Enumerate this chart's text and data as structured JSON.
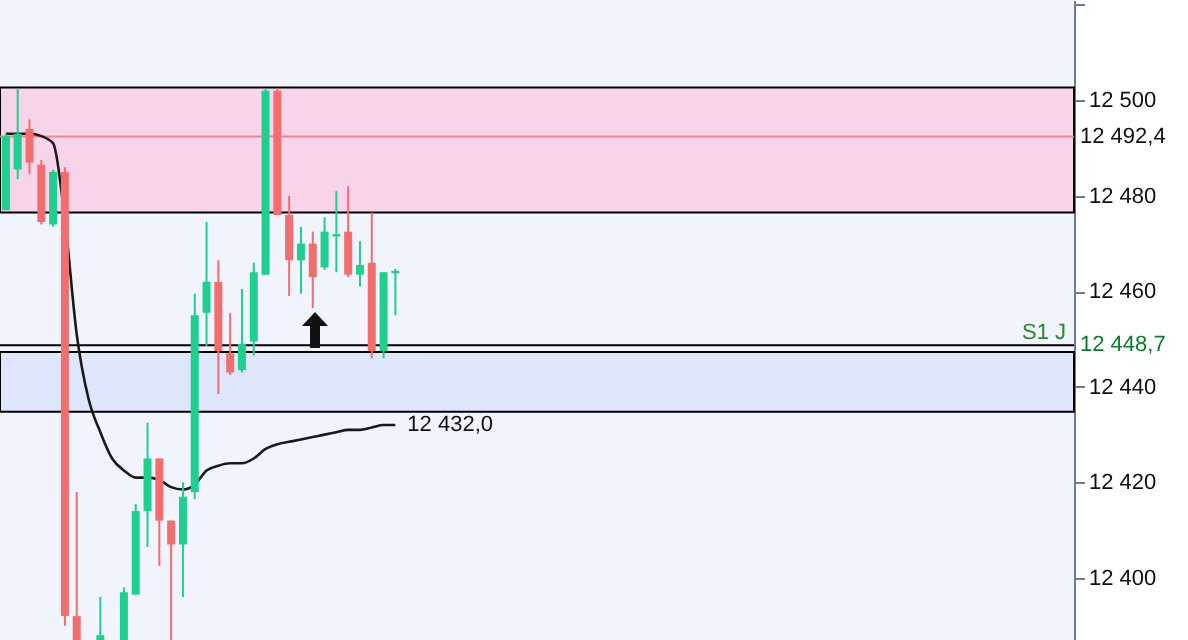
{
  "chart_data": {
    "type": "candlestick",
    "categories": [
      null,
      null,
      null,
      null,
      null,
      null,
      null,
      null,
      null,
      null,
      null,
      null,
      null,
      null,
      null,
      null,
      null,
      null,
      null,
      null,
      null,
      null,
      null,
      null,
      null,
      null,
      null,
      null,
      null,
      null,
      null,
      null,
      null,
      null,
      null,
      null,
      null,
      null,
      null,
      null,
      null,
      null,
      null,
      null,
      null,
      null,
      null,
      null,
      null,
      null,
      null,
      null,
      null,
      null,
      null,
      null,
      null,
      null,
      null,
      null,
      null,
      null,
      null,
      null,
      null,
      null,
      null,
      null,
      null,
      null,
      null,
      null,
      null,
      null,
      null,
      null,
      null,
      null,
      null,
      null,
      null,
      null,
      null,
      null,
      null,
      null,
      null,
      null,
      null,
      null,
      null
    ],
    "ohlc": [
      [
        12477,
        12493,
        12477,
        12492.5
      ],
      [
        12485.5,
        12502.5,
        12483.5,
        12493
      ],
      [
        12494,
        12496,
        12484.5,
        12487
      ],
      [
        12486.5,
        12487.5,
        12474,
        12474.5
      ],
      [
        12474,
        12485.5,
        12473.5,
        12485
      ],
      [
        12485,
        12486,
        12390,
        12392
      ],
      [
        12392,
        12418,
        12387,
        12387
      ],
      null,
      [
        12387,
        12396,
        12387,
        12388
      ],
      null,
      [
        12387,
        12398,
        12387,
        12397
      ],
      [
        12396.5,
        12415.5,
        12396.5,
        12414
      ],
      [
        12414,
        12432.5,
        12406.5,
        12425
      ],
      [
        12425,
        12425,
        12402.5,
        12412
      ],
      [
        12412,
        12412,
        12387,
        12407
      ],
      [
        12407,
        12420,
        12396,
        12417
      ],
      [
        12418,
        12459.5,
        12416.5,
        12455
      ],
      [
        12455.5,
        12474.5,
        12448.5,
        12462
      ],
      [
        12462,
        12466.5,
        12438.5,
        12447.5
      ],
      [
        12447,
        12455.5,
        12442.5,
        12443
      ],
      [
        12443.5,
        12460.5,
        12443,
        12449
      ],
      [
        12449.5,
        12466,
        12446.5,
        12464
      ],
      [
        12463.5,
        12502.5,
        12463.5,
        12502
      ],
      [
        12502,
        12502.5,
        12476,
        12476
      ],
      [
        12476,
        12480,
        12459,
        12466.5
      ],
      [
        12466.5,
        12473.5,
        12459.5,
        12470
      ],
      [
        12470,
        12472.5,
        12456.5,
        12463
      ],
      [
        12465,
        12475.5,
        12464.5,
        12472.5
      ],
      [
        12471.5,
        12481,
        12464,
        12472
      ],
      [
        12472.5,
        12482,
        12463,
        12463.5
      ],
      [
        12463.5,
        12470.5,
        12461,
        12465.5
      ],
      [
        12466,
        12476.5,
        12446,
        12447.5
      ],
      [
        12447.5,
        12464,
        12446,
        12464
      ],
      [
        12463.8,
        12464.7,
        12455,
        12464.3
      ],
      null,
      null,
      null,
      null,
      null,
      null,
      null,
      null,
      null,
      null,
      null,
      null,
      null,
      null,
      null,
      null,
      null,
      null,
      null,
      null,
      null,
      null,
      null,
      null,
      null,
      null,
      null,
      null,
      null,
      null,
      null,
      null,
      null,
      null,
      null,
      null,
      null,
      null,
      null,
      null,
      null,
      null,
      null,
      null,
      null,
      null,
      null,
      null,
      null,
      null,
      null,
      null,
      null,
      null,
      null,
      null,
      null
    ],
    "colors": [
      "#1ecf8e",
      "#1ecf8e",
      "#f26d6d",
      "#f26d6d",
      "#1ecf8e",
      "#f26d6d",
      "#f26d6d",
      null,
      "#1ecf8e",
      null,
      "#1ecf8e",
      "#1ecf8e",
      "#1ecf8e",
      "#f26d6d",
      "#f26d6d",
      "#1ecf8e",
      "#1ecf8e",
      "#1ecf8e",
      "#f26d6d",
      "#f26d6d",
      "#1ecf8e",
      "#1ecf8e",
      "#1ecf8e",
      "#f26d6d",
      "#f26d6d",
      "#1ecf8e",
      "#f26d6d",
      "#1ecf8e",
      "#1ecf8e",
      "#f26d6d",
      "#1ecf8e",
      "#f26d6d",
      "#1ecf8e",
      "#1ecf8e",
      null,
      null,
      null,
      null,
      null,
      null,
      null,
      null,
      null,
      null,
      null,
      null,
      null,
      null,
      null,
      null,
      null,
      null,
      null,
      null,
      null,
      null,
      null,
      null,
      null,
      null,
      null,
      null,
      null,
      null,
      null,
      null,
      null,
      null,
      null,
      null,
      null,
      null,
      null,
      null,
      null,
      null,
      null,
      null,
      null,
      null,
      null,
      null,
      null,
      null,
      null,
      null,
      null,
      null,
      null,
      null,
      null
    ],
    "series": [
      {
        "type": "line",
        "color": "#1a1a1a",
        "values": [
          12493,
          12493,
          12493,
          12492.5,
          12491,
          12475,
          12451,
          12437.5,
          12430.5,
          12425,
          12422.5,
          12421,
          12421,
          12420.5,
          12419,
          12418.5,
          12419.5,
          12422.5,
          12423.5,
          12424,
          12424,
          12425,
          12427,
          12428,
          12428.5,
          12429,
          12429.5,
          12430,
          12430.5,
          12431,
          12431,
          12431.5,
          12432,
          12432,
          null,
          null,
          null,
          null,
          null,
          null,
          null,
          null,
          null,
          null,
          null,
          null,
          null,
          null,
          null,
          null,
          null,
          null,
          null,
          null,
          null,
          null,
          null,
          null,
          null,
          null,
          null,
          null,
          null,
          null,
          null,
          null,
          null,
          null,
          null,
          null,
          null,
          null,
          null,
          null,
          null,
          null,
          null,
          null,
          null,
          null,
          null,
          null,
          null,
          null,
          null,
          null,
          null,
          null,
          null,
          null,
          null
        ],
        "value_labels": [
          null,
          null,
          null,
          null,
          null,
          null,
          null,
          null,
          null,
          null,
          null,
          null,
          null,
          null,
          null,
          null,
          null,
          null,
          null,
          null,
          null,
          null,
          null,
          null,
          null,
          null,
          null,
          null,
          null,
          null,
          null,
          null,
          null,
          "12 432,0",
          null,
          null,
          null,
          null,
          null,
          null,
          null,
          null,
          null,
          null,
          null,
          null,
          null,
          null,
          null,
          null,
          null,
          null,
          null,
          null,
          null,
          null,
          null,
          null,
          null,
          null,
          null,
          null,
          null,
          null,
          null,
          null,
          null,
          null,
          null,
          null,
          null,
          null,
          null,
          null,
          null,
          null,
          null,
          null,
          null,
          null,
          null,
          null,
          null,
          null,
          null,
          null,
          null,
          null,
          null,
          null,
          null
        ]
      }
    ],
    "ylim": [
      12387,
      12521
    ],
    "yticks": [
      {
        "value": 12400,
        "label": "12 400"
      },
      {
        "value": 12420,
        "label": "12 420"
      },
      {
        "value": 12440,
        "label": "12 440"
      },
      {
        "value": 12460,
        "label": "12 460"
      },
      {
        "value": 12480,
        "label": "12 480"
      },
      {
        "value": 12500,
        "label": "12 500"
      },
      {
        "value": 12520,
        "label": null
      }
    ],
    "tick_labels": "y",
    "ref_lines": [
      {
        "axis": "y",
        "value": 12492.4,
        "label": "12 492,4",
        "color": "#ff8080"
      },
      {
        "axis": "y",
        "value": 12448.7,
        "label": "12 448,7",
        "color": "#000000"
      }
    ],
    "bands": [
      {
        "axis": "y",
        "from": 12476.5,
        "to": 12502.7,
        "color": "#f8d4ea"
      },
      {
        "axis": "y",
        "from": 12434.8,
        "to": 12447.3,
        "color": "#dde6fa"
      }
    ],
    "annotations": [
      {
        "text": "S1 J",
        "y": 12448.7
      }
    ]
  }
}
